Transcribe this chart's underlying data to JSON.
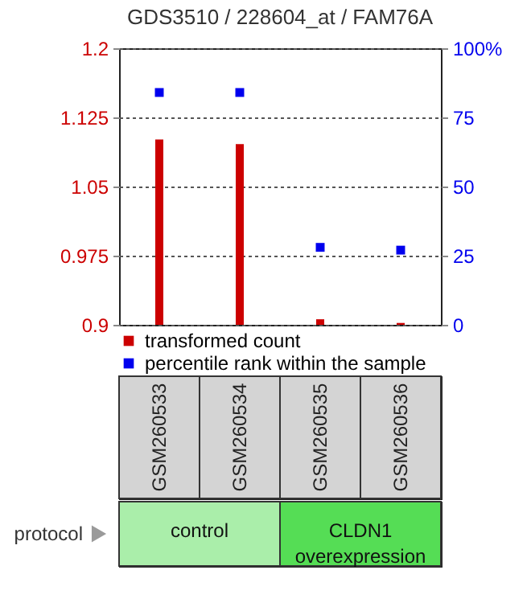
{
  "chart_data": {
    "type": "bar",
    "title": "GDS3510 / 228604_at / FAM76A",
    "categories": [
      "GSM260533",
      "GSM260534",
      "GSM260535",
      "GSM260536"
    ],
    "series": [
      {
        "name": "transformed count",
        "color": "#cc0000",
        "values": [
          1.101,
          1.096,
          0.906,
          0.902
        ]
      },
      {
        "name": "percentile rank within the sample",
        "type": "scatter",
        "axis": "y2",
        "color": "#0000ee",
        "values": [
          84,
          84,
          28,
          27
        ]
      }
    ],
    "ylim": [
      0.9,
      1.2
    ],
    "yticks": [
      0.9,
      0.975,
      1.05,
      1.125,
      1.2
    ],
    "y2lim": [
      0,
      100
    ],
    "y2ticks": [
      0,
      25,
      50,
      75,
      {
        "value": 100,
        "label": "100%"
      }
    ],
    "grid": "y",
    "legend": "bottom",
    "marker": "square",
    "annotations": [
      "protocol",
      "control",
      "CLDN1 overexpression"
    ]
  }
}
